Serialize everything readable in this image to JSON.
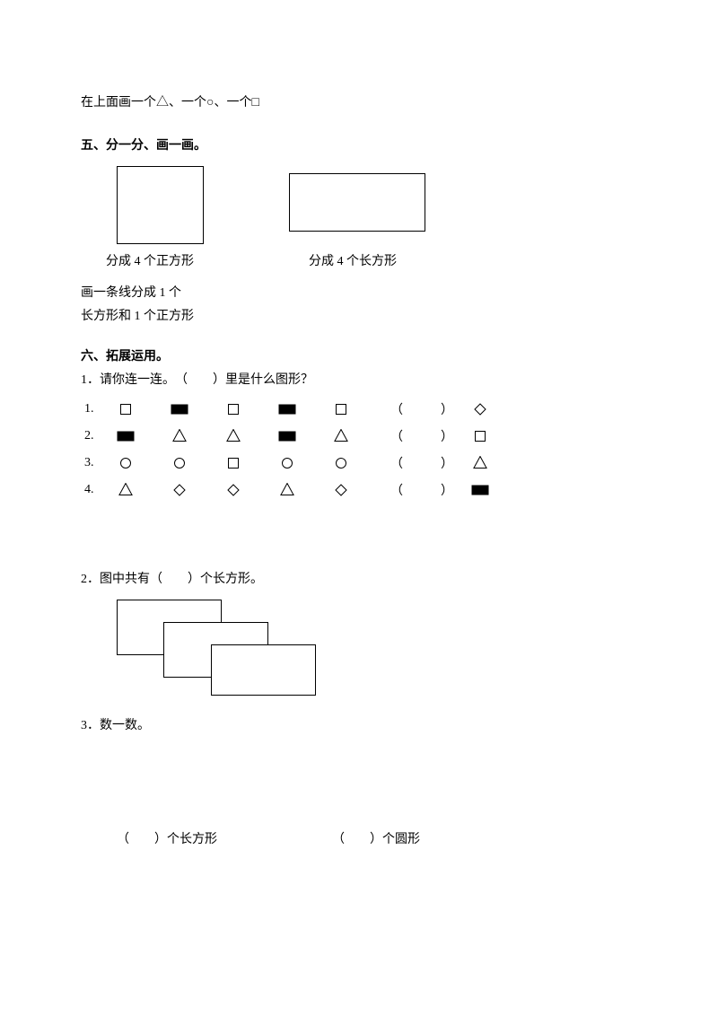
{
  "intro_line": "在上面画一个△、一个○、一个□",
  "section5": {
    "title": "五、分一分、画一画。",
    "caption1": "分成 4 个正方形",
    "caption2": "分成 4 个长方形",
    "line_task1": "画一条线分成 1 个",
    "line_task2": "长方形和 1 个正方形"
  },
  "section6": {
    "title": "六、拓展运用。",
    "q1_intro": "1．请你连一连。　（　　）里是什么图形？",
    "rows": [
      {
        "num": "1.",
        "seq": [
          "empty-square",
          "filled-rect",
          "empty-square",
          "filled-rect",
          "empty-square"
        ],
        "end": "diamond"
      },
      {
        "num": "2.",
        "seq": [
          "filled-rect",
          "triangle",
          "triangle",
          "filled-rect",
          "triangle"
        ],
        "end": "empty-square"
      },
      {
        "num": "3.",
        "seq": [
          "circle",
          "circle",
          "empty-square",
          "circle",
          "circle"
        ],
        "end": "triangle"
      },
      {
        "num": "4.",
        "seq": [
          "triangle",
          "diamond",
          "diamond",
          "triangle",
          "diamond"
        ],
        "end": "filled-rect"
      }
    ],
    "paren_text": "（　　　）",
    "q2": "2．图中共有（　　）个长方形。",
    "q3": "3．数一数。",
    "count1": "（　　）个长方形",
    "count2": "（　　）个圆形"
  },
  "shape_defs": {
    "empty-square": {
      "type": "square",
      "size": 11,
      "fill": "none",
      "stroke": "#000"
    },
    "filled-rect": {
      "type": "rect",
      "w": 18,
      "h": 10,
      "fill": "#000",
      "stroke": "#000"
    },
    "triangle": {
      "type": "triangle",
      "size": 12,
      "fill": "none",
      "stroke": "#000"
    },
    "circle": {
      "type": "circle",
      "size": 11,
      "fill": "none",
      "stroke": "#000"
    },
    "diamond": {
      "type": "diamond",
      "size": 12,
      "fill": "none",
      "stroke": "#000"
    }
  },
  "colors": {
    "text": "#000000",
    "bg": "#ffffff"
  }
}
